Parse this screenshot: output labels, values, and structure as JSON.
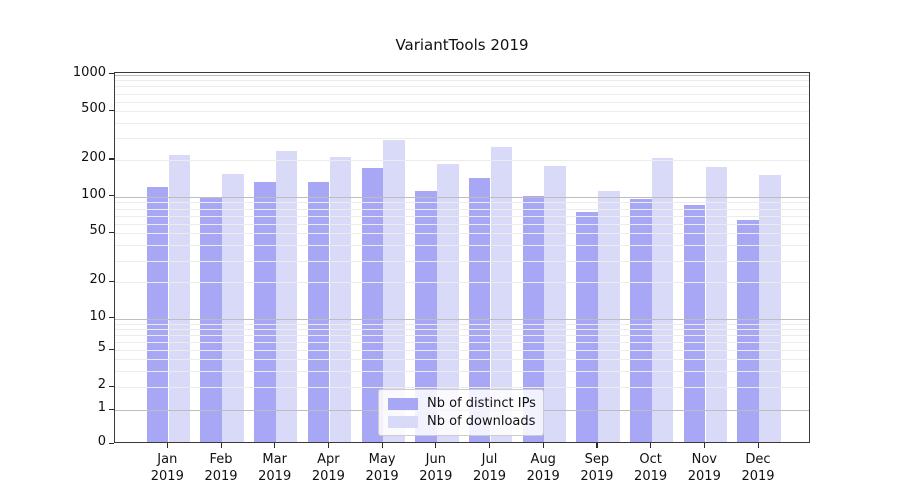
{
  "chart_data": {
    "type": "bar",
    "title": "VariantTools 2019",
    "x_categories": [
      {
        "month": "Jan",
        "year": "2019"
      },
      {
        "month": "Feb",
        "year": "2019"
      },
      {
        "month": "Mar",
        "year": "2019"
      },
      {
        "month": "Apr",
        "year": "2019"
      },
      {
        "month": "May",
        "year": "2019"
      },
      {
        "month": "Jun",
        "year": "2019"
      },
      {
        "month": "Jul",
        "year": "2019"
      },
      {
        "month": "Aug",
        "year": "2019"
      },
      {
        "month": "Sep",
        "year": "2019"
      },
      {
        "month": "Oct",
        "year": "2019"
      },
      {
        "month": "Nov",
        "year": "2019"
      },
      {
        "month": "Dec",
        "year": "2019"
      }
    ],
    "series": [
      {
        "name": "Nb of distinct IPs",
        "color": "#a7a7f5",
        "values": [
          115,
          95,
          127,
          127,
          164,
          108,
          136,
          98,
          72,
          93,
          83,
          62
        ]
      },
      {
        "name": "Nb of downloads",
        "color": "#d9d9f8",
        "values": [
          212,
          149,
          226,
          204,
          280,
          178,
          244,
          171,
          108,
          200,
          170,
          146
        ]
      }
    ],
    "y_axis": {
      "scale": "symlog",
      "ticks": [
        0,
        1,
        2,
        5,
        10,
        20,
        50,
        100,
        200,
        500,
        1000
      ],
      "top_value": 1030
    },
    "x_axis": {
      "label": ""
    },
    "legend": {
      "position": "lower center"
    },
    "grid": {
      "enabled": true,
      "major_color": "#bdbdbd",
      "minor_color": "#ececec"
    }
  }
}
